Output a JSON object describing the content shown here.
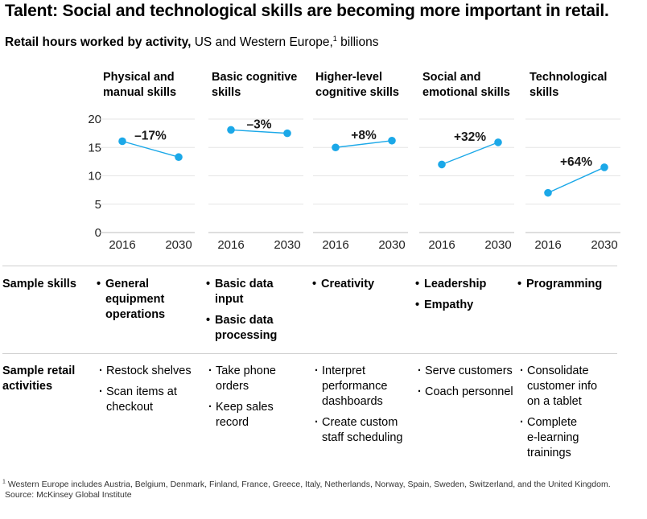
{
  "title": "Talent: Social and technological skills are becoming more important in retail.",
  "subtitle": {
    "bold": "Retail hours worked by activity,",
    "regular": " US and Western Europe,",
    "sup": "1",
    "after": " billions"
  },
  "chart_data": {
    "type": "line",
    "title": "Talent: Social and technological skills are becoming more important in retail.",
    "subtitle": "Retail hours worked by activity, US and Western Europe, billions",
    "ylabel": "",
    "ylim": [
      0,
      20
    ],
    "yticks": [
      0,
      5,
      10,
      15,
      20
    ],
    "x": [
      "2016",
      "2030"
    ],
    "grid": true,
    "line_color": "#1ba8e8",
    "series": [
      {
        "name": "Physical and manual skills",
        "values": [
          16.1,
          13.3
        ],
        "change": "–17%"
      },
      {
        "name": "Basic cognitive skills",
        "values": [
          18.1,
          17.5
        ],
        "change": "–3%"
      },
      {
        "name": "Higher-level cognitive skills",
        "values": [
          15.0,
          16.2
        ],
        "change": "+8%"
      },
      {
        "name": "Social and emotional skills",
        "values": [
          12.0,
          15.9
        ],
        "change": "+32%"
      },
      {
        "name": "Technological skills",
        "values": [
          7.0,
          11.5
        ],
        "change": "+64%"
      }
    ]
  },
  "panel_titles": [
    [
      "Physical and",
      "manual skills"
    ],
    [
      "Basic cognitive",
      "skills"
    ],
    [
      "Higher-level",
      "cognitive skills"
    ],
    [
      "Social and",
      "emotional skills"
    ],
    [
      "Technological",
      "skills"
    ]
  ],
  "rows": {
    "skills_label": [
      "Sample skills"
    ],
    "activities_label": [
      "Sample retail",
      "activities"
    ]
  },
  "sample_skills": [
    [
      [
        "General",
        "equipment",
        "operations"
      ]
    ],
    [
      [
        "Basic data",
        "input"
      ],
      [
        "Basic data",
        "processing"
      ]
    ],
    [
      [
        "Creativity"
      ]
    ],
    [
      [
        "Leadership"
      ],
      [
        "Empathy"
      ]
    ],
    [
      [
        "Programming"
      ]
    ]
  ],
  "sample_activities": [
    [
      [
        "Restock shelves"
      ],
      [
        "Scan items at",
        "checkout"
      ]
    ],
    [
      [
        "Take phone",
        "orders"
      ],
      [
        "Keep sales",
        "record"
      ]
    ],
    [
      [
        "Interpret",
        "performance",
        "dashboards"
      ],
      [
        "Create custom",
        "staff scheduling"
      ]
    ],
    [
      [
        "Serve customers"
      ],
      [
        "Coach personnel"
      ]
    ],
    [
      [
        "Consolidate",
        "customer info",
        "on a tablet"
      ],
      [
        "Complete",
        "e-learning",
        "trainings"
      ]
    ]
  ],
  "footnote": {
    "sup": "1",
    "text": " Western Europe includes Austria, Belgium, Denmark, Finland, France, Greece, Italy, Netherlands, Norway, Spain, Sweden, Switzerland, and the United Kingdom.",
    "source": "Source: McKinsey Global Institute"
  }
}
